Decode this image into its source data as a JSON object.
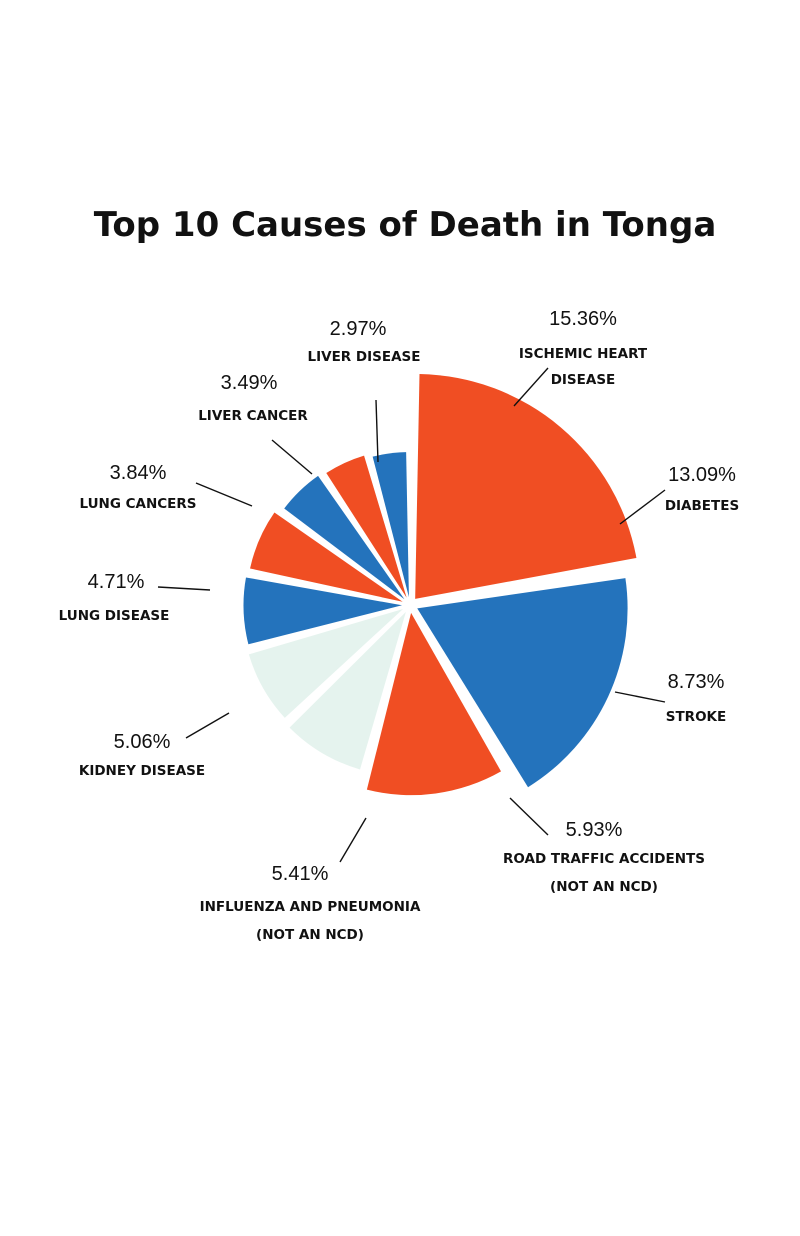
{
  "chart_data": {
    "type": "pie",
    "title": "Top 10 Causes of Death in Tonga",
    "slices": [
      {
        "label": [
          "ISCHEMIC HEART",
          "DISEASE"
        ],
        "pct_text": "15.36%",
        "value": 15.36,
        "color": "#f04e23"
      },
      {
        "label": [
          "DIABETES"
        ],
        "pct_text": "13.09%",
        "value": 13.09,
        "color": "#2473bc"
      },
      {
        "label": [
          "STROKE"
        ],
        "pct_text": "8.73%",
        "value": 8.73,
        "color": "#f04e23"
      },
      {
        "label": [
          "ROAD TRAFFIC ACCIDENTS",
          "(NOT AN NCD)"
        ],
        "pct_text": "5.93%",
        "value": 5.93,
        "color": "#e5f3ee"
      },
      {
        "label": [
          "INFLUENZA AND PNEUMONIA",
          "(NOT AN NCD)"
        ],
        "pct_text": "5.41%",
        "value": 5.41,
        "color": "#e5f3ee"
      },
      {
        "label": [
          "KIDNEY DISEASE"
        ],
        "pct_text": "5.06%",
        "value": 5.06,
        "color": "#2473bc"
      },
      {
        "label": [
          "LUNG DISEASE"
        ],
        "pct_text": "4.71%",
        "value": 4.71,
        "color": "#f04e23"
      },
      {
        "label": [
          "LUNG CANCERS"
        ],
        "pct_text": "3.84%",
        "value": 3.84,
        "color": "#2473bc"
      },
      {
        "label": [
          "LIVER CANCER"
        ],
        "pct_text": "3.49%",
        "value": 3.49,
        "color": "#f04e23"
      },
      {
        "label": [
          "LIVER DISEASE"
        ],
        "pct_text": "2.97%",
        "value": 2.97,
        "color": "#2473bc"
      }
    ]
  }
}
